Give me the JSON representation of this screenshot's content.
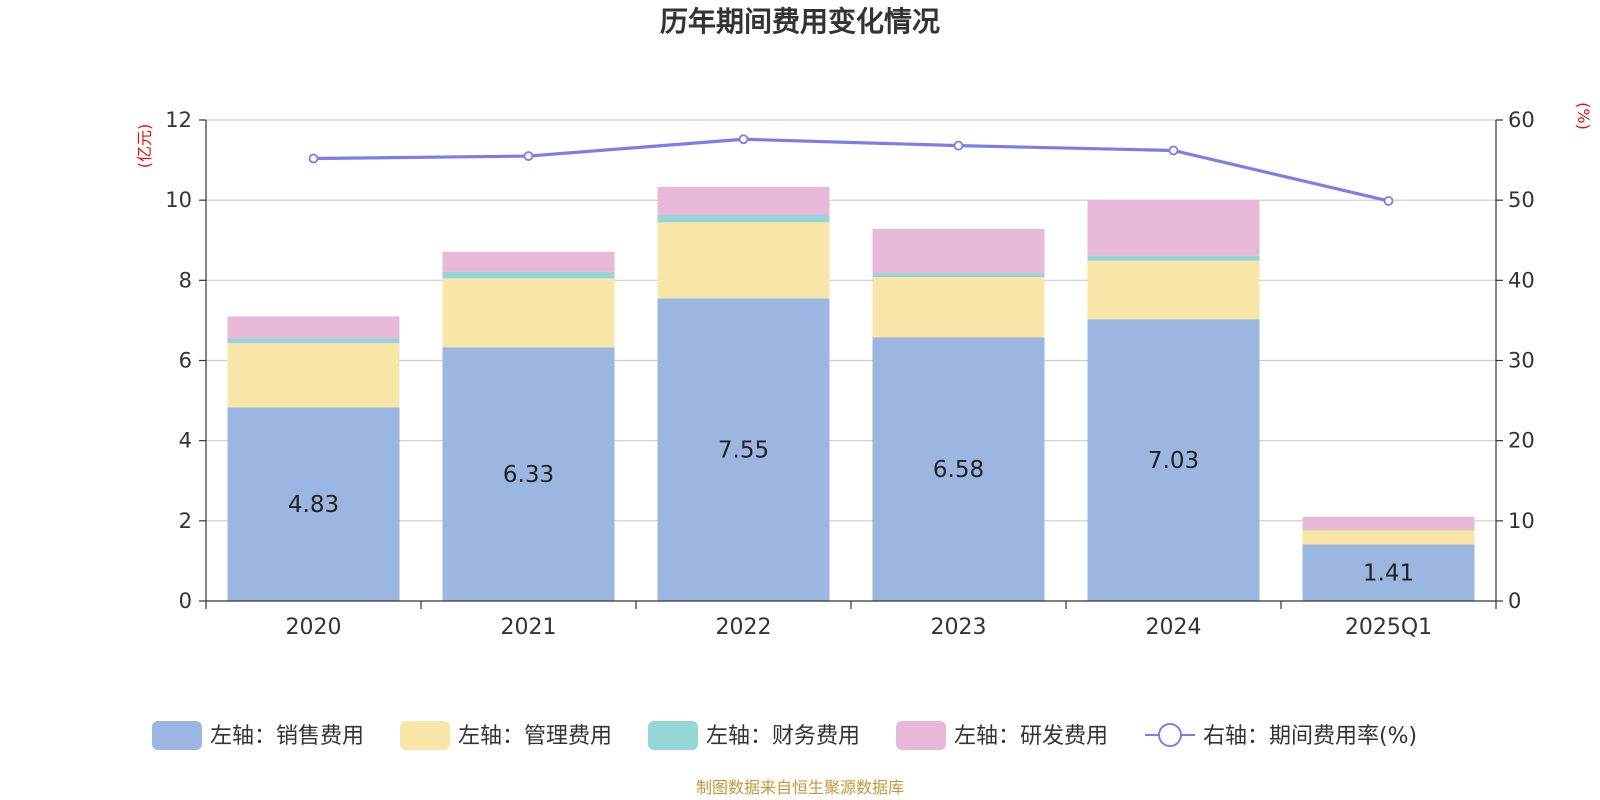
{
  "chart_data": {
    "type": "bar",
    "title": "历年期间费用变化情况",
    "categories": [
      "2020",
      "2021",
      "2022",
      "2023",
      "2024",
      "2025Q1"
    ],
    "left_axis": {
      "unit": "(亿元)",
      "ylim": [
        0,
        12
      ],
      "ticks": [
        0,
        2,
        4,
        6,
        8,
        10,
        12
      ]
    },
    "right_axis": {
      "unit": "(%)",
      "ylim": [
        0,
        60
      ],
      "ticks": [
        0,
        10,
        20,
        30,
        40,
        50,
        60
      ]
    },
    "series": [
      {
        "name": "左轴：销售费用",
        "axis": "left",
        "type": "stacked-bar",
        "color": "#9bb7e1",
        "values": [
          4.83,
          6.33,
          7.55,
          6.58,
          7.03,
          1.41
        ],
        "show_labels": true
      },
      {
        "name": "左轴：管理费用",
        "axis": "left",
        "type": "stacked-bar",
        "color": "#f7e6a8",
        "values": [
          1.6,
          1.72,
          1.9,
          1.5,
          1.46,
          0.35
        ]
      },
      {
        "name": "左轴：财务费用",
        "axis": "left",
        "type": "stacked-bar",
        "color": "#94d5d5",
        "values": [
          0.12,
          0.16,
          0.18,
          0.1,
          0.12,
          0.01
        ]
      },
      {
        "name": "左轴：研发费用",
        "axis": "left",
        "type": "stacked-bar",
        "color": "#e8b8d9",
        "values": [
          0.55,
          0.5,
          0.7,
          1.1,
          1.4,
          0.33
        ]
      },
      {
        "name": "右轴：期间费用率(%)",
        "axis": "right",
        "type": "line",
        "color": "#7b7ee8",
        "values": [
          55.2,
          55.5,
          57.6,
          56.8,
          56.2,
          49.9
        ]
      }
    ],
    "legend_position": "bottom",
    "grid": true
  },
  "footer": {
    "source": "制图数据来自恒生聚源数据库"
  }
}
